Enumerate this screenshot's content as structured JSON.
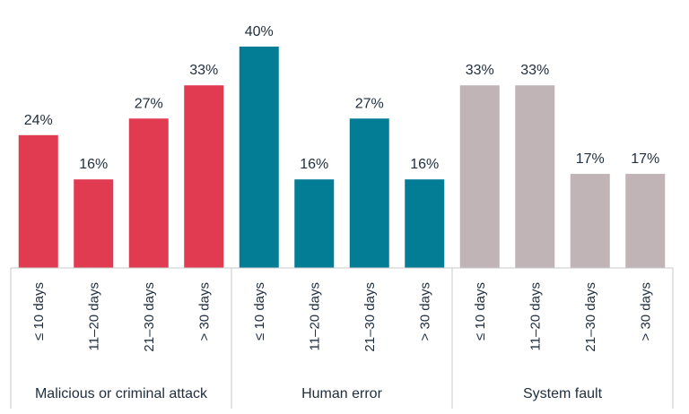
{
  "chart_data": {
    "type": "bar",
    "value_suffix": "%",
    "ylim": [
      0,
      40
    ],
    "grid": false,
    "groups": [
      {
        "name": "Malicious or criminal attack",
        "color": "#e03b50",
        "categories": [
          "≤ 10 days",
          "11–20 days",
          "21–30 days",
          "> 30 days"
        ],
        "values": [
          24,
          16,
          27,
          33
        ],
        "labels": [
          "24%",
          "16%",
          "27%",
          "33%"
        ]
      },
      {
        "name": "Human error",
        "color": "#037d96",
        "categories": [
          "≤ 10 days",
          "11–20 days",
          "21–30 days",
          "> 30 days"
        ],
        "values": [
          40,
          16,
          27,
          16
        ],
        "labels": [
          "40%",
          "16%",
          "27%",
          "16%"
        ]
      },
      {
        "name": "System fault",
        "color": "#c1b4b6",
        "categories": [
          "≤ 10 days",
          "11–20 days",
          "21–30 days",
          "> 30 days"
        ],
        "values": [
          33,
          33,
          17,
          17
        ],
        "labels": [
          "33%",
          "33%",
          "17%",
          "17%"
        ]
      }
    ]
  }
}
